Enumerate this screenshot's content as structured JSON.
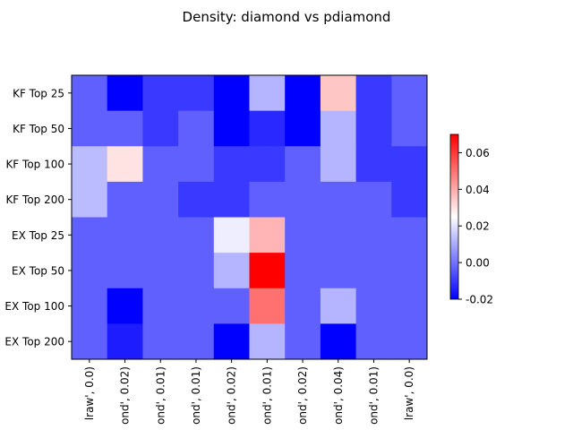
{
  "chart_data": {
    "type": "heatmap",
    "title": "Density: diamond vs pdiamond",
    "xlabel": "",
    "ylabel": "",
    "rows": [
      "KF Top 25",
      "KF Top 50",
      "KF Top 100",
      "KF Top 200",
      "EX Top 25",
      "EX Top 50",
      "EX Top 100",
      "EX Top 200"
    ],
    "row_tick_labels": [
      "KF Top 25",
      "KF Top 50",
      "KF Top 100",
      "KF Top 200",
      "EX Top 25",
      "EX Top 50",
      "EX Top 100",
      "EX Top 200"
    ],
    "col_tick_labels": [
      "lraw', 0.0)",
      "ond', 0.02)",
      "ond', 0.01)",
      "ond', 0.01)",
      "ond', 0.02)",
      "ond', 0.01)",
      "ond', 0.02)",
      "ond', 0.04)",
      "ond', 0.01)",
      "lraw', 0.0)"
    ],
    "values": [
      [
        -0.003,
        -0.02,
        -0.01,
        -0.01,
        -0.02,
        0.012,
        -0.02,
        0.035,
        -0.01,
        -0.003
      ],
      [
        -0.003,
        -0.003,
        -0.01,
        -0.003,
        -0.02,
        -0.013,
        -0.02,
        0.012,
        -0.01,
        -0.003
      ],
      [
        0.013,
        0.03,
        -0.003,
        -0.003,
        -0.01,
        -0.01,
        -0.003,
        0.012,
        -0.01,
        -0.01
      ],
      [
        0.013,
        -0.003,
        -0.003,
        -0.01,
        -0.01,
        -0.003,
        -0.003,
        -0.003,
        -0.003,
        -0.01
      ],
      [
        -0.003,
        -0.003,
        -0.003,
        -0.003,
        0.022,
        0.038,
        -0.003,
        -0.003,
        -0.003,
        -0.003
      ],
      [
        -0.003,
        -0.003,
        -0.003,
        -0.003,
        0.012,
        0.07,
        -0.003,
        -0.003,
        -0.003,
        -0.003
      ],
      [
        -0.003,
        -0.02,
        -0.003,
        -0.003,
        -0.003,
        0.05,
        -0.003,
        0.012,
        -0.003,
        -0.003
      ],
      [
        -0.003,
        -0.015,
        -0.003,
        -0.003,
        -0.02,
        0.012,
        -0.003,
        -0.02,
        -0.003,
        -0.003
      ]
    ],
    "colorscale": {
      "name": "bwr",
      "vmin": -0.02,
      "vmax": 0.07,
      "low": "#0000ff",
      "mid": "#ffffff",
      "high": "#ff0000"
    },
    "colorbar_ticks": [
      "-0.02",
      "0.00",
      "0.02",
      "0.04",
      "0.06"
    ],
    "colorbar_tick_values": [
      -0.02,
      0.0,
      0.02,
      0.04,
      0.06
    ],
    "grid": false,
    "legend": "colorbar-right"
  }
}
